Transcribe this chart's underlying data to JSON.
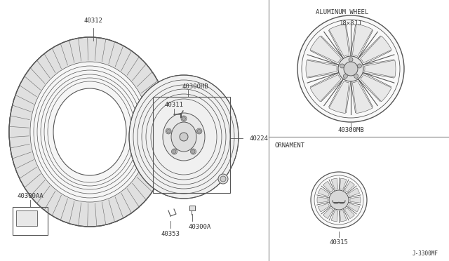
{
  "bg_color": "#ffffff",
  "line_color": "#555555",
  "text_color": "#333333",
  "divider_color": "#999999",
  "fig_width": 6.4,
  "fig_height": 3.72,
  "labels": {
    "tire": "40312",
    "wheel_assy": "40300HB",
    "valve": "40311",
    "nut": "40224",
    "hub_cap": "40300AA",
    "wheel_nut": "40300A",
    "clip": "40353",
    "alum_wheel": "40300MB",
    "ornament_num": "40315"
  },
  "section_titles": {
    "aluminum_wheel": "ALUMINUM WHEEL",
    "ornament": "ORNAMENT",
    "wheel_size": "18×8JJ"
  },
  "diagram_number": "J-3300MF"
}
